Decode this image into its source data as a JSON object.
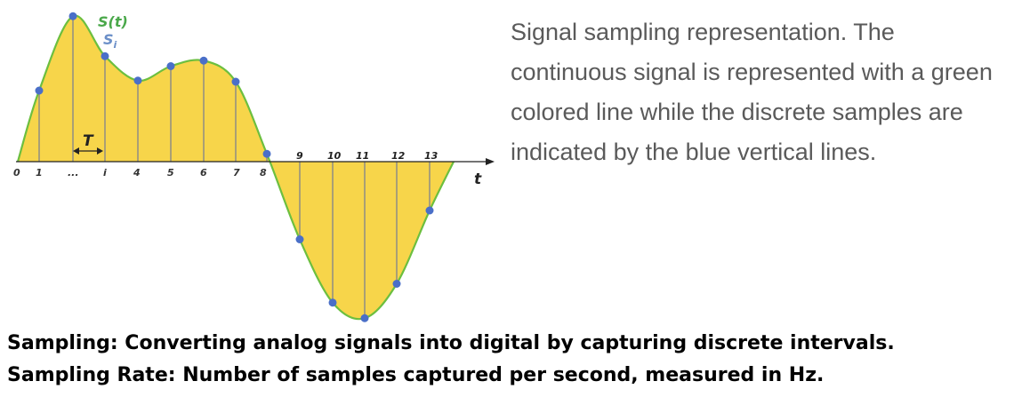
{
  "figure": {
    "signal_label": "S(t)",
    "sample_label": "S",
    "sample_subscript": "i",
    "period_label": "T",
    "time_label": "t",
    "axis_labels": [
      "0",
      "1",
      "...",
      "i",
      "4",
      "5",
      "6",
      "7",
      "8"
    ],
    "lower_axis_labels": [
      "9",
      "10",
      "11",
      "12",
      "13"
    ],
    "colors": {
      "signal": "#6cbf3f",
      "fill": "#f7d54a",
      "sample_point": "#4a6fc8",
      "sample_line": "#888888",
      "signal_label": "#4aa84a",
      "sample_label": "#6b8fc8"
    },
    "samples": [
      {
        "n": 1,
        "value": 0.64
      },
      {
        "n": 2,
        "value": 1.31
      },
      {
        "n": 3,
        "value": 0.95
      },
      {
        "n": 4,
        "value": 0.73
      },
      {
        "n": 5,
        "value": 0.86
      },
      {
        "n": 6,
        "value": 0.91
      },
      {
        "n": 7,
        "value": 0.72
      },
      {
        "n": 8,
        "value": 0.07
      },
      {
        "n": 9,
        "value": -0.7
      },
      {
        "n": 10,
        "value": -1.27
      },
      {
        "n": 11,
        "value": -1.41
      },
      {
        "n": 12,
        "value": -1.1
      },
      {
        "n": 13,
        "value": -0.44
      }
    ]
  },
  "caption": "Signal sampling representation. The continuous signal is represented with a green colored line while the discrete samples are indicated by the blue vertical lines.",
  "definitions": {
    "sampling": "Sampling: Converting analog signals into digital by capturing discrete intervals.",
    "sampling_rate": "Sampling Rate: Number of samples captured per second, measured in Hz."
  }
}
